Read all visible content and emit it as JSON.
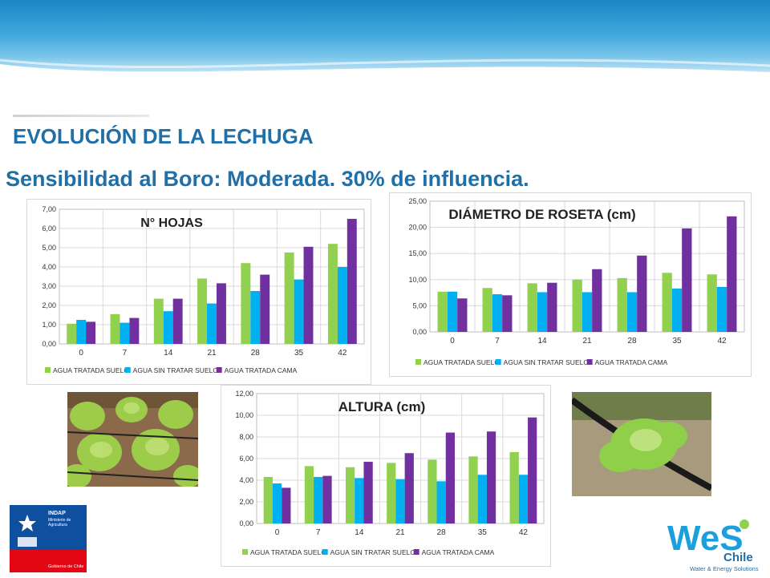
{
  "header": {
    "title": "EVOLUCIÓN DE LA LECHUGA",
    "subtitle": "Sensibilidad al Boro: Moderada. 30% de influencia."
  },
  "colors": {
    "series1": "#92d050",
    "series2": "#00b0f0",
    "series3": "#7030a0",
    "title_blue": "#1f6fa8"
  },
  "logos": {
    "gobierno": {
      "line1": "INDAP",
      "line2": "Ministerio de",
      "line3": "Agricultura",
      "line4": "Gobierno de Chile"
    },
    "wes": {
      "brand": "WeS",
      "country": "Chile",
      "tagline": "Water & Energy Solutions"
    }
  },
  "chart_data": [
    {
      "type": "bar",
      "title": "N° HOJAS",
      "categories": [
        "0",
        "7",
        "14",
        "21",
        "28",
        "35",
        "42"
      ],
      "ylim": [
        0,
        7
      ],
      "yticks": [
        "0,00",
        "1,00",
        "2,00",
        "3,00",
        "4,00",
        "5,00",
        "6,00",
        "7,00"
      ],
      "series": [
        {
          "name": "AGUA TRATADA SUELO",
          "values": [
            1.05,
            1.55,
            2.35,
            3.4,
            4.2,
            4.75,
            5.2
          ]
        },
        {
          "name": "AGUA SIN TRATAR SUELO",
          "values": [
            1.25,
            1.1,
            1.7,
            2.1,
            2.75,
            3.35,
            4.0
          ]
        },
        {
          "name": "AGUA TRATADA CAMA",
          "values": [
            1.15,
            1.35,
            2.35,
            3.15,
            3.6,
            5.05,
            6.5
          ]
        }
      ],
      "legend": "bottom"
    },
    {
      "type": "bar",
      "title": "DIÁMETRO DE ROSETA (cm)",
      "categories": [
        "0",
        "7",
        "14",
        "21",
        "28",
        "35",
        "42"
      ],
      "ylim": [
        0,
        25
      ],
      "yticks": [
        "0,00",
        "5,00",
        "10,00",
        "15,00",
        "20,00",
        "25,00"
      ],
      "series": [
        {
          "name": "AGUA TRATADA SUELO",
          "values": [
            7.7,
            8.4,
            9.3,
            10.0,
            10.3,
            11.3,
            11.0
          ]
        },
        {
          "name": "AGUA SIN TRATAR SUELO",
          "values": [
            7.7,
            7.2,
            7.6,
            7.6,
            7.6,
            8.3,
            8.6
          ]
        },
        {
          "name": "AGUA TRATADA CAMA",
          "values": [
            6.4,
            7.0,
            9.4,
            12.0,
            14.6,
            19.8,
            22.1
          ]
        }
      ],
      "legend": "bottom"
    },
    {
      "type": "bar",
      "title": "ALTURA (cm)",
      "categories": [
        "0",
        "7",
        "14",
        "21",
        "28",
        "35",
        "42"
      ],
      "ylim": [
        0,
        12
      ],
      "yticks": [
        "0,00",
        "2,00",
        "4,00",
        "6,00",
        "8,00",
        "10,00",
        "12,00"
      ],
      "series": [
        {
          "name": "AGUA TRATADA SUELO",
          "values": [
            4.3,
            5.3,
            5.2,
            5.6,
            5.9,
            6.2,
            6.6
          ]
        },
        {
          "name": "AGUA SIN TRATAR SUELO",
          "values": [
            3.7,
            4.3,
            4.2,
            4.1,
            3.9,
            4.5,
            4.5
          ]
        },
        {
          "name": "AGUA TRATADA CAMA",
          "values": [
            3.3,
            4.4,
            5.7,
            6.5,
            8.4,
            8.5,
            9.8
          ]
        }
      ],
      "legend": "bottom"
    }
  ]
}
